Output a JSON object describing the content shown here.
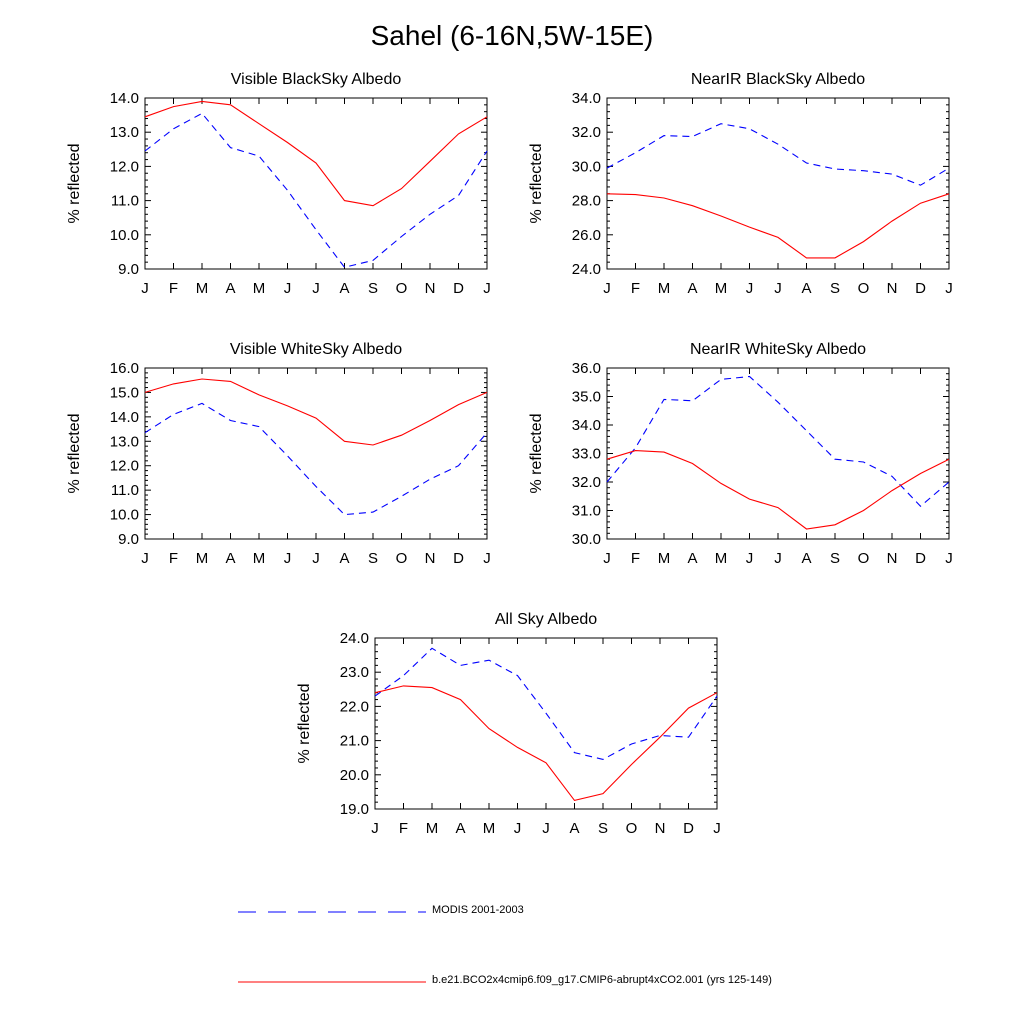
{
  "figure": {
    "title": "Sahel (6-16N,5W-15E)"
  },
  "legend": [
    {
      "label": "MODIS 2001-2003",
      "color": "#0000ff",
      "style": "dashed"
    },
    {
      "label": "b.e21.BCO2x4cmip6.f09_g17.CMIP6-abrupt4xCO2.001 (yrs 125-149)",
      "color": "#ff0000",
      "style": "solid"
    }
  ],
  "chart_data": [
    {
      "type": "line",
      "title": "Visible BlackSky Albedo",
      "ylabel": "% reflected",
      "x": [
        "J",
        "F",
        "M",
        "A",
        "M",
        "J",
        "J",
        "A",
        "S",
        "O",
        "N",
        "D",
        "J"
      ],
      "ylim": [
        9.0,
        14.0
      ],
      "yticks": [
        "9.0",
        "10.0",
        "11.0",
        "12.0",
        "13.0",
        "14.0"
      ],
      "series": [
        {
          "color": "#0000ff",
          "style": "dashed",
          "values": [
            12.45,
            13.1,
            13.55,
            12.55,
            12.3,
            11.3,
            10.15,
            9.05,
            9.25,
            9.95,
            10.6,
            11.15,
            12.45
          ]
        },
        {
          "color": "#ff0000",
          "style": "solid",
          "values": [
            13.45,
            13.75,
            13.9,
            13.8,
            13.25,
            12.7,
            12.1,
            11.0,
            10.85,
            11.35,
            12.15,
            12.95,
            13.45
          ]
        }
      ]
    },
    {
      "type": "line",
      "title": "NearIR BlackSky Albedo",
      "ylabel": "% reflected",
      "x": [
        "J",
        "F",
        "M",
        "A",
        "M",
        "J",
        "J",
        "A",
        "S",
        "O",
        "N",
        "D",
        "J"
      ],
      "ylim": [
        24.0,
        34.0
      ],
      "yticks": [
        "24.0",
        "26.0",
        "28.0",
        "30.0",
        "32.0",
        "34.0"
      ],
      "series": [
        {
          "color": "#0000ff",
          "style": "dashed",
          "values": [
            29.9,
            30.8,
            31.8,
            31.75,
            32.5,
            32.2,
            31.3,
            30.2,
            29.85,
            29.75,
            29.55,
            28.9,
            29.9
          ]
        },
        {
          "color": "#ff0000",
          "style": "solid",
          "values": [
            28.4,
            28.35,
            28.15,
            27.7,
            27.1,
            26.45,
            25.85,
            24.65,
            24.65,
            25.6,
            26.8,
            27.85,
            28.4
          ]
        }
      ]
    },
    {
      "type": "line",
      "title": "Visible WhiteSky Albedo",
      "ylabel": "% reflected",
      "x": [
        "J",
        "F",
        "M",
        "A",
        "M",
        "J",
        "J",
        "A",
        "S",
        "O",
        "N",
        "D",
        "J"
      ],
      "ylim": [
        9.0,
        16.0
      ],
      "yticks": [
        "9.0",
        "10.0",
        "11.0",
        "12.0",
        "13.0",
        "14.0",
        "15.0",
        "16.0"
      ],
      "series": [
        {
          "color": "#0000ff",
          "style": "dashed",
          "values": [
            13.35,
            14.1,
            14.55,
            13.85,
            13.6,
            12.4,
            11.15,
            10.0,
            10.1,
            10.75,
            11.45,
            12.0,
            13.35
          ]
        },
        {
          "color": "#ff0000",
          "style": "solid",
          "values": [
            15.0,
            15.35,
            15.55,
            15.45,
            14.9,
            14.45,
            13.95,
            13.0,
            12.85,
            13.25,
            13.85,
            14.5,
            15.0
          ]
        }
      ]
    },
    {
      "type": "line",
      "title": "NearIR WhiteSky Albedo",
      "ylabel": "% reflected",
      "x": [
        "J",
        "F",
        "M",
        "A",
        "M",
        "J",
        "J",
        "A",
        "S",
        "O",
        "N",
        "D",
        "J"
      ],
      "ylim": [
        30.0,
        36.0
      ],
      "yticks": [
        "30.0",
        "31.0",
        "32.0",
        "33.0",
        "34.0",
        "35.0",
        "36.0"
      ],
      "series": [
        {
          "color": "#0000ff",
          "style": "dashed",
          "values": [
            32.0,
            33.2,
            34.9,
            34.85,
            35.6,
            35.7,
            34.8,
            33.8,
            32.8,
            32.7,
            32.2,
            31.15,
            32.0
          ]
        },
        {
          "color": "#ff0000",
          "style": "solid",
          "values": [
            32.8,
            33.1,
            33.05,
            32.65,
            31.95,
            31.4,
            31.1,
            30.35,
            30.5,
            31.0,
            31.7,
            32.3,
            32.8
          ]
        }
      ]
    },
    {
      "type": "line",
      "title": "All Sky Albedo",
      "ylabel": "% reflected",
      "x": [
        "J",
        "F",
        "M",
        "A",
        "M",
        "J",
        "J",
        "A",
        "S",
        "O",
        "N",
        "D",
        "J"
      ],
      "ylim": [
        19.0,
        24.0
      ],
      "yticks": [
        "19.0",
        "20.0",
        "21.0",
        "22.0",
        "23.0",
        "24.0"
      ],
      "series": [
        {
          "color": "#0000ff",
          "style": "dashed",
          "values": [
            22.3,
            22.9,
            23.7,
            23.2,
            23.35,
            22.9,
            21.8,
            20.65,
            20.45,
            20.9,
            21.15,
            21.1,
            22.3
          ]
        },
        {
          "color": "#ff0000",
          "style": "solid",
          "values": [
            22.4,
            22.6,
            22.55,
            22.2,
            21.35,
            20.8,
            20.35,
            19.25,
            19.45,
            20.3,
            21.1,
            21.95,
            22.4
          ]
        }
      ]
    }
  ]
}
